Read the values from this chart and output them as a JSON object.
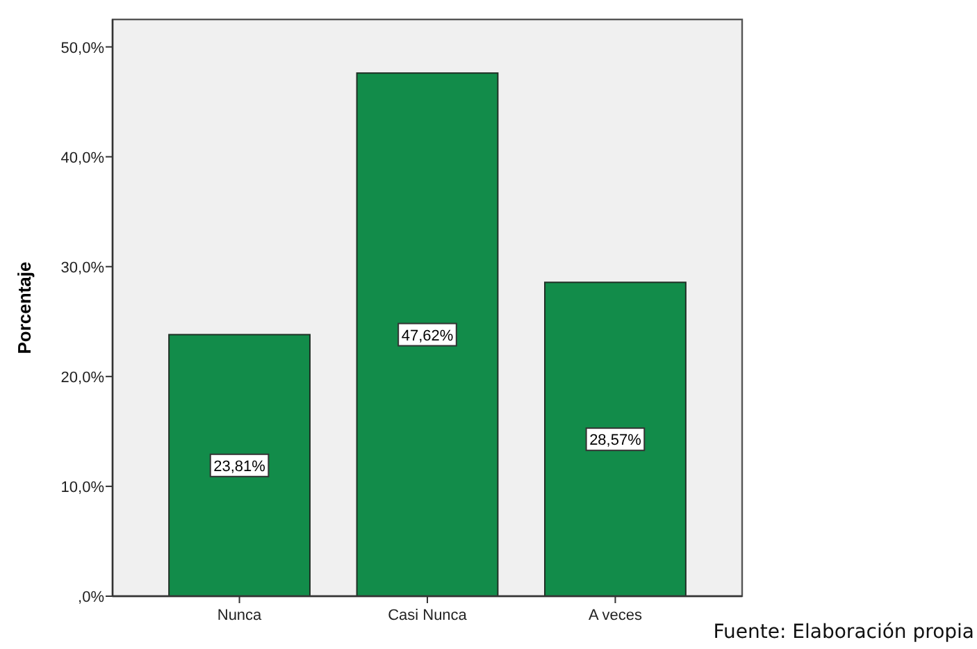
{
  "chart_data": {
    "type": "bar",
    "ylabel": "Porcentaje",
    "categories": [
      "Nunca",
      "Casi Nunca",
      "A veces"
    ],
    "values": [
      23.81,
      47.62,
      28.57
    ],
    "value_labels": [
      "23,81%",
      "47,62%",
      "28,57%"
    ],
    "color": "#128c4a",
    "ylim": [
      0,
      52.5
    ],
    "yticks": [
      {
        "value": 0,
        "label": ",0%"
      },
      {
        "value": 10,
        "label": "10,0%"
      },
      {
        "value": 20,
        "label": "20,0%"
      },
      {
        "value": 30,
        "label": "30,0%"
      },
      {
        "value": 40,
        "label": "40,0%"
      },
      {
        "value": 50,
        "label": "50,0%"
      }
    ],
    "annotations": [
      "Fuente: Elaboración propia"
    ]
  }
}
